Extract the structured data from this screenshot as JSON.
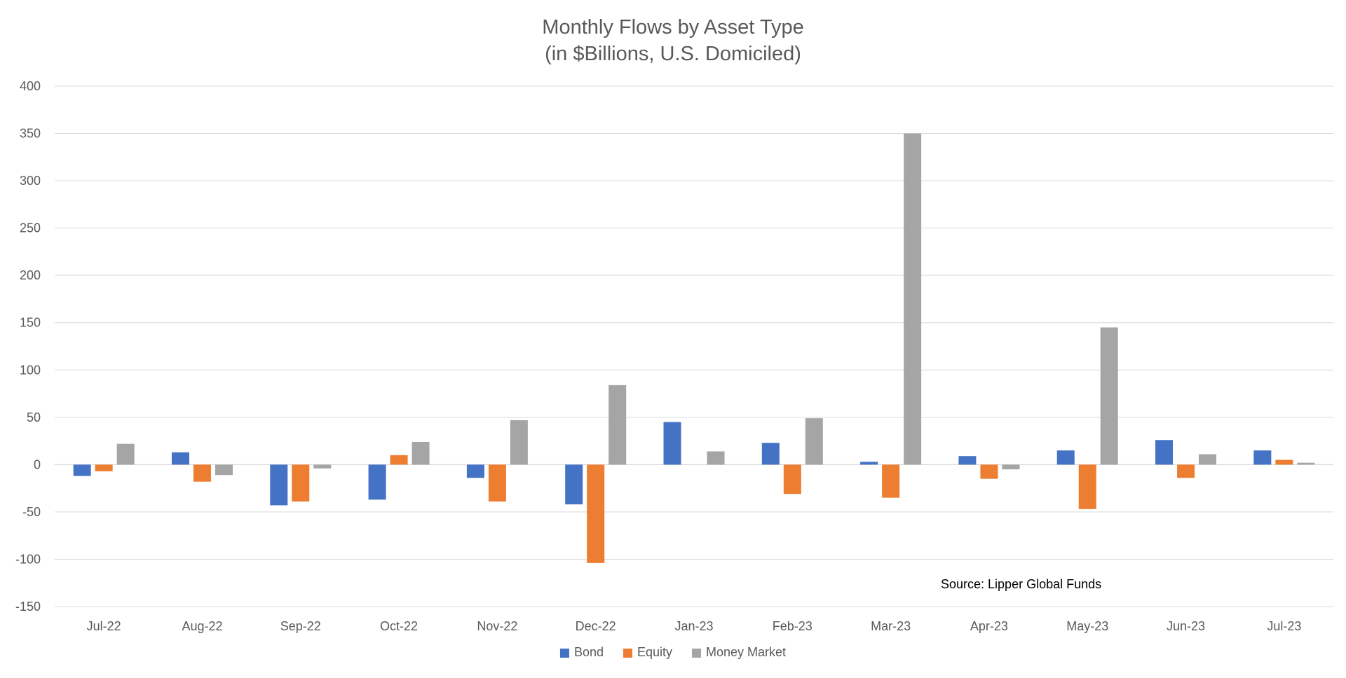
{
  "chart_data": {
    "type": "bar",
    "title_line1": "Monthly Flows by Asset Type",
    "title_line2": "(in $Billions, U.S. Domiciled)",
    "categories": [
      "Jul-22",
      "Aug-22",
      "Sep-22",
      "Oct-22",
      "Nov-22",
      "Dec-22",
      "Jan-23",
      "Feb-23",
      "Mar-23",
      "Apr-23",
      "May-23",
      "Jun-23",
      "Jul-23"
    ],
    "series": [
      {
        "name": "Bond",
        "color": "#4472c4",
        "values": [
          -12,
          13,
          -43,
          -37,
          -14,
          -42,
          45,
          23,
          3,
          9,
          15,
          26,
          15
        ]
      },
      {
        "name": "Equity",
        "color": "#ed7d31",
        "values": [
          -7,
          -18,
          -39,
          10,
          -39,
          -104,
          0,
          -31,
          -35,
          -15,
          -47,
          -14,
          5
        ]
      },
      {
        "name": "Money Market",
        "color": "#a5a5a5",
        "values": [
          22,
          -11,
          -4,
          24,
          47,
          84,
          14,
          49,
          350,
          -5,
          145,
          11,
          2
        ]
      }
    ],
    "ylim": [
      -150,
      400
    ],
    "yticks": [
      400,
      350,
      300,
      250,
      200,
      150,
      100,
      50,
      0,
      -50,
      -100,
      -150
    ],
    "grid": true,
    "legend_position": "bottom",
    "annotation": "Source: Lipper Global Funds"
  }
}
